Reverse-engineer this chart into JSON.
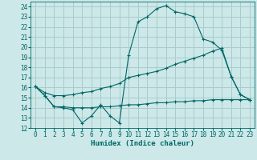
{
  "xlabel": "Humidex (Indice chaleur)",
  "bg_color": "#cce8e8",
  "grid_color": "#aacccc",
  "line_color": "#006666",
  "xlim": [
    -0.5,
    23.5
  ],
  "ylim": [
    12,
    24.5
  ],
  "xticks": [
    0,
    1,
    2,
    3,
    4,
    5,
    6,
    7,
    8,
    9,
    10,
    11,
    12,
    13,
    14,
    15,
    16,
    17,
    18,
    19,
    20,
    21,
    22,
    23
  ],
  "yticks": [
    12,
    13,
    14,
    15,
    16,
    17,
    18,
    19,
    20,
    21,
    22,
    23,
    24
  ],
  "line1_x": [
    0,
    1,
    2,
    3,
    4,
    5,
    6,
    7,
    8,
    9,
    10,
    11,
    12,
    13,
    14,
    15,
    16,
    17,
    18,
    19,
    20,
    21,
    22,
    23
  ],
  "line1_y": [
    16.1,
    15.2,
    14.1,
    14.0,
    13.8,
    12.5,
    13.2,
    14.3,
    13.2,
    12.5,
    19.2,
    22.5,
    23.0,
    23.8,
    24.1,
    23.5,
    23.3,
    23.0,
    20.8,
    20.5,
    19.7,
    17.1,
    15.3,
    14.8
  ],
  "line2_x": [
    0,
    1,
    2,
    3,
    4,
    5,
    6,
    7,
    8,
    9,
    10,
    11,
    12,
    13,
    14,
    15,
    16,
    17,
    18,
    19,
    20,
    21,
    22,
    23
  ],
  "line2_y": [
    16.1,
    15.5,
    15.2,
    15.2,
    15.3,
    15.5,
    15.6,
    15.9,
    16.1,
    16.4,
    17.0,
    17.2,
    17.4,
    17.6,
    17.9,
    18.3,
    18.6,
    18.9,
    19.2,
    19.6,
    19.9,
    17.1,
    15.3,
    14.8
  ],
  "line3_x": [
    0,
    1,
    2,
    3,
    4,
    5,
    6,
    7,
    8,
    9,
    10,
    11,
    12,
    13,
    14,
    15,
    16,
    17,
    18,
    19,
    20,
    21,
    22,
    23
  ],
  "line3_y": [
    16.1,
    15.2,
    14.1,
    14.1,
    14.0,
    14.0,
    14.0,
    14.1,
    14.1,
    14.2,
    14.3,
    14.3,
    14.4,
    14.5,
    14.5,
    14.6,
    14.6,
    14.7,
    14.7,
    14.8,
    14.8,
    14.8,
    14.8,
    14.8
  ],
  "xlabel_fontsize": 6.5,
  "tick_fontsize": 5.5
}
